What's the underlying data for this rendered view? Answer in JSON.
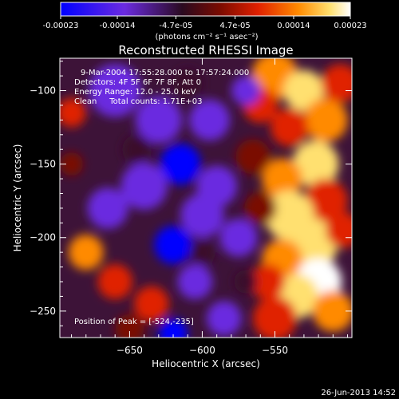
{
  "colorbar": {
    "tick_labels": [
      "-0.00023",
      "-0.00014",
      "-4.7e-05",
      "4.7e-05",
      "0.00014",
      "0.00023"
    ],
    "unit_label": "(photons cm⁻² s⁻¹ asec⁻²)"
  },
  "chart_data": {
    "type": "heatmap",
    "title": "Reconstructed RHESSI Image",
    "xlabel": "Heliocentric X (arcsec)",
    "ylabel": "Heliocentric Y (arcsec)",
    "xlim": [
      -698,
      -497
    ],
    "ylim": [
      -268,
      -78
    ],
    "x_ticks": [
      -650,
      -600,
      -550
    ],
    "y_ticks": [
      -100,
      -150,
      -200,
      -250
    ],
    "x_tick_labels": [
      "−650",
      "−600",
      "−550"
    ],
    "y_tick_labels": [
      "−100",
      "−150",
      "−200",
      "−250"
    ],
    "colormap": [
      "#0000ff",
      "#6b2be0",
      "#3a0f2a",
      "#7a0b00",
      "#e02000",
      "#ff8a00",
      "#ffe070",
      "#ffffff"
    ],
    "value_range": [
      -0.00023,
      0.00023
    ],
    "info_lines": [
      "9-Mar-2004 17:55:28.000 to 17:57:24.000",
      "Detectors: 4F 5F 6F 7F 8F, Att 0",
      "Energy Range: 12.0 - 25.0 keV",
      "Clean     Total counts: 1.71E+03"
    ],
    "peak_label": "Position of Peak = [-524,-235]",
    "peak": [
      -524,
      -235
    ]
  },
  "footer": {
    "date": "26-Jun-2013 14:52"
  }
}
